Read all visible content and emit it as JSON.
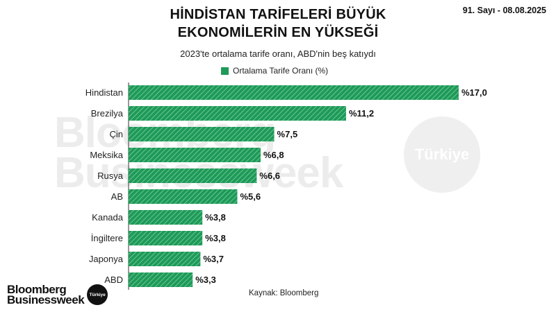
{
  "header": {
    "issue": "91. Sayı - 08.08.2025",
    "title_line1": "HİNDİSTAN TARİFELERİ BÜYÜK",
    "title_line2": "EKONOMİLERİN EN YÜKSEĞİ",
    "subtitle": "2023'te ortalama tarife oranı, ABD'nin beş katıydı"
  },
  "legend": {
    "label": "Ortalama Tarife Oranı (%)"
  },
  "watermark": {
    "line1": "Bloomberg",
    "line2": "Businessweek",
    "badge": "Türkiye"
  },
  "footer": {
    "source": "Kaynak: Bloomberg",
    "logo_line1": "Bloomberg",
    "logo_line2": "Businessweek",
    "logo_badge": "Türkiye"
  },
  "colors": {
    "bar": "#1e9a58",
    "hatch": "#7fd1a3"
  },
  "chart_data": {
    "type": "bar",
    "orientation": "horizontal",
    "categories": [
      "Hindistan",
      "Brezilya",
      "Çin",
      "Meksika",
      "Rusya",
      "AB",
      "Kanada",
      "İngiltere",
      "Japonya",
      "ABD"
    ],
    "series": [
      {
        "name": "Ortalama Tarife Oranı (%)",
        "values": [
          17.0,
          11.2,
          7.5,
          6.8,
          6.6,
          5.6,
          3.8,
          3.8,
          3.7,
          3.3
        ]
      }
    ],
    "data_labels": [
      "%17,0",
      "%11,2",
      "%7,5",
      "%6,8",
      "%6,6",
      "%5,6",
      "%3,8",
      "%3,8",
      "%3,7",
      "%3,3"
    ],
    "title": "HİNDİSTAN TARİFELERİ BÜYÜK EKONOMİLERİN EN YÜKSEĞİ",
    "subtitle": "2023'te ortalama tarife oranı, ABD'nin beş katıydı",
    "xlabel": "",
    "ylabel": "",
    "legend_position": "top-center",
    "grid": false
  }
}
